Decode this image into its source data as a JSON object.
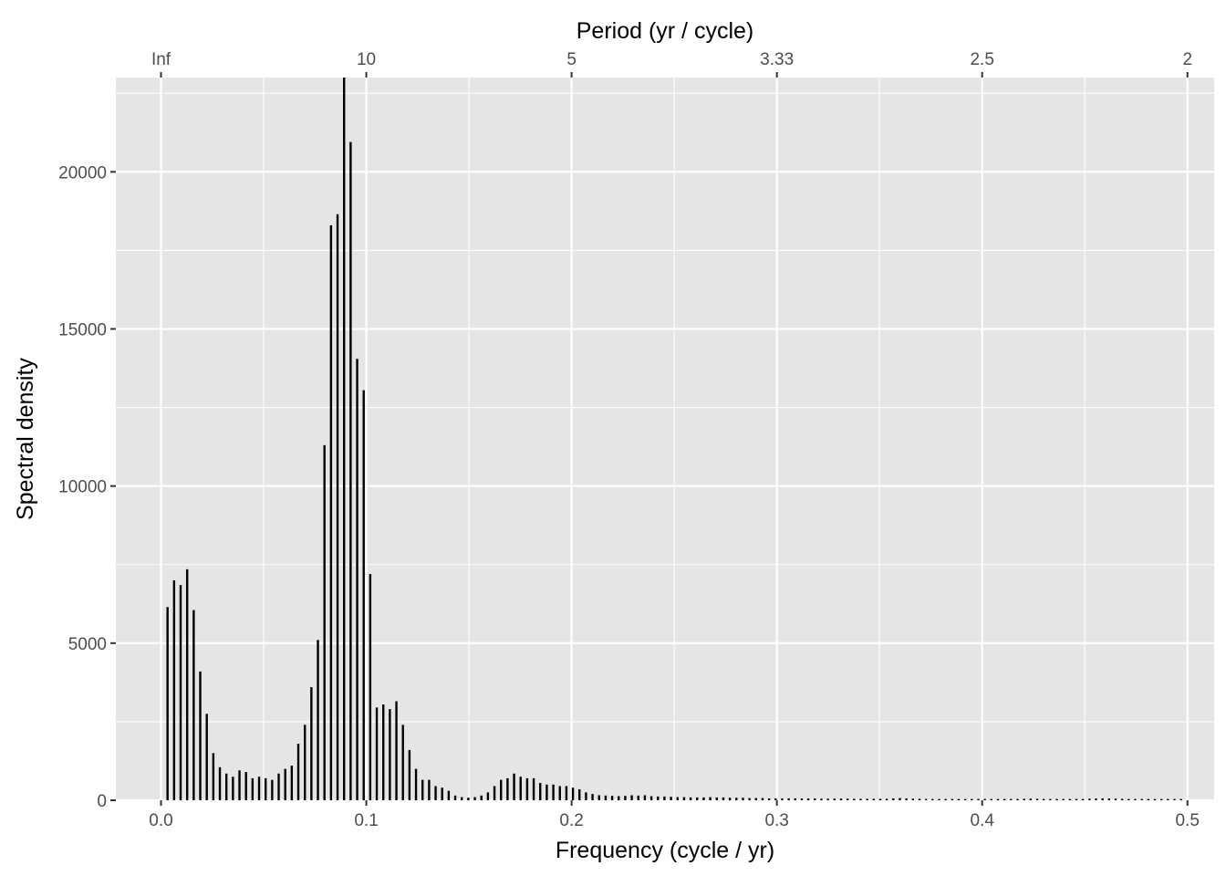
{
  "chart_data": {
    "type": "bar",
    "xlabel": "Frequency (cycle / yr)",
    "ylabel": "Spectral density",
    "secondary_xlabel": "Period (yr / cycle)",
    "xlim": [
      -0.022,
      0.513
    ],
    "ylim": [
      0,
      23000
    ],
    "grid": true,
    "x_ticks": [
      {
        "value": 0.0,
        "label": "0.0"
      },
      {
        "value": 0.1,
        "label": "0.1"
      },
      {
        "value": 0.2,
        "label": "0.2"
      },
      {
        "value": 0.3,
        "label": "0.3"
      },
      {
        "value": 0.4,
        "label": "0.4"
      },
      {
        "value": 0.5,
        "label": "0.5"
      }
    ],
    "y_ticks": [
      {
        "value": 0,
        "label": "0"
      },
      {
        "value": 5000,
        "label": "5000"
      },
      {
        "value": 10000,
        "label": "10000"
      },
      {
        "value": 15000,
        "label": "15000"
      },
      {
        "value": 20000,
        "label": "20000"
      }
    ],
    "top_ticks": [
      {
        "value": 0.0,
        "label": "Inf"
      },
      {
        "value": 0.1,
        "label": "10"
      },
      {
        "value": 0.2,
        "label": "5"
      },
      {
        "value": 0.3,
        "label": "3.33"
      },
      {
        "value": 0.4,
        "label": "2.5"
      },
      {
        "value": 0.5,
        "label": "2"
      }
    ],
    "freq_step": 0.003185,
    "values": [
      6150,
      7000,
      6850,
      7350,
      6050,
      4100,
      2750,
      1500,
      1050,
      850,
      750,
      950,
      900,
      700,
      750,
      700,
      650,
      850,
      1000,
      1100,
      1800,
      2400,
      3600,
      5100,
      11300,
      18300,
      18650,
      23000,
      20950,
      14050,
      13050,
      7200,
      2950,
      3050,
      2900,
      3150,
      2400,
      1600,
      1000,
      650,
      650,
      450,
      400,
      300,
      150,
      100,
      80,
      100,
      150,
      250,
      450,
      650,
      700,
      850,
      750,
      700,
      700,
      550,
      500,
      500,
      450,
      450,
      400,
      350,
      250,
      200,
      160,
      150,
      140,
      130,
      140,
      160,
      150,
      160,
      130,
      120,
      120,
      110,
      100,
      100,
      90,
      90,
      90,
      100,
      90,
      90,
      80,
      80,
      80,
      70,
      70,
      70,
      60,
      60,
      60,
      60,
      60,
      55,
      55,
      55,
      50,
      50,
      50,
      50,
      50,
      45,
      45,
      45,
      45,
      45,
      45,
      60,
      70,
      60,
      50,
      45,
      40,
      40,
      40,
      40,
      40,
      40,
      40,
      40,
      40,
      40,
      40,
      40,
      40,
      40,
      40,
      45,
      50,
      45,
      40,
      40,
      40,
      40,
      40,
      40,
      40,
      50,
      55,
      60,
      55,
      50,
      45,
      40,
      40,
      40,
      40,
      40,
      40,
      40,
      40,
      40
    ]
  }
}
